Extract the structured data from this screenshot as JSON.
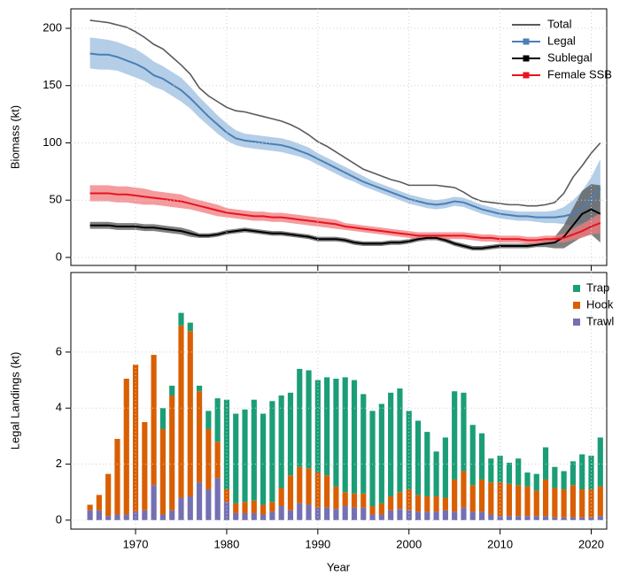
{
  "chart_data": [
    {
      "type": "line",
      "ylabel": "Biomass (kt)",
      "legend": "upper right",
      "grid": true,
      "xlim": [
        1962.9,
        2021.7
      ],
      "xticks": [
        1970,
        1980,
        1990,
        2000,
        2010,
        2020
      ],
      "ylim": [
        -7,
        217
      ],
      "yticks": [
        0,
        50,
        100,
        150,
        200
      ],
      "x": [
        1965,
        1966,
        1967,
        1968,
        1969,
        1970,
        1971,
        1972,
        1973,
        1974,
        1975,
        1976,
        1977,
        1978,
        1979,
        1980,
        1981,
        1982,
        1983,
        1984,
        1985,
        1986,
        1987,
        1988,
        1989,
        1990,
        1991,
        1992,
        1993,
        1994,
        1995,
        1996,
        1997,
        1998,
        1999,
        2000,
        2001,
        2002,
        2003,
        2004,
        2005,
        2006,
        2007,
        2008,
        2009,
        2010,
        2011,
        2012,
        2013,
        2014,
        2015,
        2016,
        2017,
        2018,
        2019,
        2020,
        2021
      ],
      "series": [
        {
          "name": "Total",
          "color": "#5a5a5a",
          "values": [
            207,
            206,
            205,
            203,
            201,
            197,
            192,
            186,
            182,
            175,
            168,
            160,
            148,
            141,
            136,
            131,
            128,
            127,
            125,
            123,
            121,
            119,
            116,
            112,
            107,
            101,
            97,
            92,
            87,
            82,
            77,
            74,
            71,
            68,
            66,
            63,
            63,
            63,
            63,
            62,
            61,
            57,
            52,
            49,
            48,
            47,
            46,
            46,
            45,
            45,
            46,
            48,
            56,
            70,
            80,
            91,
            100
          ]
        },
        {
          "name": "Legal",
          "color": "#4a7fb5",
          "band_color": "#9bbde0",
          "values": [
            178,
            177,
            177,
            175,
            172,
            169,
            165,
            159,
            156,
            151,
            146,
            139,
            131,
            123,
            116,
            109,
            104,
            102,
            101,
            100,
            99,
            98,
            96,
            93,
            90,
            86,
            82,
            78,
            74,
            70,
            66,
            63,
            60,
            57,
            54,
            51,
            49,
            47,
            46,
            47,
            49,
            48,
            45,
            42,
            40,
            38,
            37,
            36,
            36,
            35,
            35,
            35,
            36,
            38,
            43,
            51,
            60
          ],
          "lower": [
            165,
            164,
            164,
            163,
            160,
            157,
            154,
            149,
            146,
            141,
            136,
            130,
            122,
            115,
            108,
            102,
            98,
            96,
            95,
            94,
            93,
            92,
            90,
            88,
            85,
            81,
            77,
            73,
            69,
            66,
            62,
            59,
            56,
            53,
            50,
            47,
            45,
            43,
            42,
            43,
            45,
            44,
            41,
            38,
            36,
            34,
            33,
            32,
            32,
            31,
            30,
            30,
            29,
            28,
            30,
            33,
            38
          ],
          "upper": [
            192,
            191,
            190,
            188,
            185,
            182,
            177,
            171,
            167,
            162,
            157,
            149,
            140,
            132,
            124,
            117,
            111,
            108,
            107,
            106,
            105,
            104,
            102,
            99,
            96,
            91,
            87,
            83,
            79,
            75,
            71,
            67,
            64,
            61,
            58,
            55,
            53,
            51,
            50,
            51,
            53,
            52,
            49,
            46,
            44,
            42,
            41,
            40,
            40,
            40,
            40,
            41,
            44,
            50,
            58,
            70,
            86
          ]
        },
        {
          "name": "Sublegal",
          "color": "#000000",
          "band_color": "#555555",
          "values": [
            28,
            28,
            28,
            27,
            27,
            27,
            26,
            26,
            25,
            24,
            23,
            21,
            19,
            19,
            20,
            22,
            23,
            24,
            23,
            22,
            21,
            21,
            20,
            19,
            18,
            16,
            16,
            16,
            15,
            13,
            12,
            12,
            12,
            13,
            13,
            14,
            16,
            17,
            17,
            15,
            12,
            10,
            8,
            8,
            9,
            10,
            10,
            10,
            10,
            11,
            12,
            13,
            18,
            28,
            38,
            42,
            38
          ],
          "lower": [
            25,
            25,
            25,
            24,
            24,
            24,
            23,
            23,
            22,
            21,
            20,
            18,
            17,
            17,
            18,
            20,
            21,
            22,
            21,
            20,
            19,
            19,
            18,
            17,
            16,
            14,
            14,
            14,
            13,
            11,
            10,
            10,
            10,
            11,
            11,
            12,
            14,
            15,
            15,
            13,
            10,
            8,
            6,
            6,
            7,
            8,
            8,
            8,
            8,
            9,
            9,
            8,
            8,
            13,
            18,
            20,
            13
          ],
          "upper": [
            31,
            31,
            31,
            30,
            30,
            30,
            29,
            29,
            28,
            27,
            26,
            24,
            21,
            21,
            22,
            24,
            25,
            26,
            25,
            24,
            23,
            23,
            22,
            21,
            20,
            18,
            18,
            18,
            17,
            15,
            14,
            14,
            14,
            15,
            15,
            16,
            18,
            19,
            19,
            17,
            14,
            12,
            10,
            10,
            11,
            12,
            12,
            12,
            12,
            13,
            15,
            18,
            28,
            43,
            58,
            64,
            63
          ]
        },
        {
          "name": "Female SSB",
          "color": "#e8141e",
          "band_color": "#f07a7e",
          "values": [
            56,
            56,
            56,
            55,
            55,
            54,
            53,
            52,
            51,
            50,
            49,
            47,
            45,
            43,
            41,
            39,
            38,
            37,
            36,
            36,
            35,
            35,
            34,
            33,
            32,
            31,
            30,
            29,
            27,
            26,
            25,
            24,
            23,
            22,
            21,
            20,
            19,
            19,
            19,
            19,
            19,
            19,
            18,
            17,
            17,
            16,
            16,
            16,
            15,
            15,
            16,
            16,
            17,
            20,
            23,
            27,
            30
          ],
          "lower": [
            49,
            49,
            49,
            48,
            48,
            47,
            46,
            46,
            45,
            44,
            43,
            42,
            40,
            38,
            36,
            35,
            34,
            33,
            32,
            32,
            31,
            31,
            30,
            29,
            28,
            27,
            26,
            25,
            24,
            23,
            22,
            21,
            20,
            19,
            18,
            17,
            16,
            16,
            16,
            16,
            16,
            16,
            15,
            14,
            14,
            13,
            13,
            13,
            12,
            12,
            13,
            13,
            13,
            15,
            17,
            20,
            21
          ],
          "upper": [
            63,
            63,
            63,
            62,
            62,
            61,
            60,
            58,
            57,
            56,
            55,
            52,
            50,
            48,
            46,
            43,
            42,
            41,
            40,
            40,
            39,
            39,
            38,
            37,
            36,
            35,
            34,
            33,
            30,
            29,
            28,
            27,
            26,
            25,
            24,
            23,
            22,
            22,
            22,
            22,
            22,
            22,
            21,
            20,
            20,
            19,
            19,
            19,
            18,
            18,
            19,
            19,
            21,
            25,
            29,
            34,
            39
          ]
        }
      ]
    },
    {
      "type": "bar",
      "stacked": true,
      "ylabel": "Legal Landings (kt)",
      "xlabel": "Year",
      "legend": "upper right",
      "grid": true,
      "xlim": [
        1962.9,
        2021.7
      ],
      "xticks": [
        1970,
        1980,
        1990,
        2000,
        2010,
        2020
      ],
      "ylim": [
        -0.32,
        8.84
      ],
      "yticks": [
        0,
        2,
        4,
        6
      ],
      "x": [
        1965,
        1966,
        1967,
        1968,
        1969,
        1970,
        1971,
        1972,
        1973,
        1974,
        1975,
        1976,
        1977,
        1978,
        1979,
        1980,
        1981,
        1982,
        1983,
        1984,
        1985,
        1986,
        1987,
        1988,
        1989,
        1990,
        1991,
        1992,
        1993,
        1994,
        1995,
        1996,
        1997,
        1998,
        1999,
        2000,
        2001,
        2002,
        2003,
        2004,
        2005,
        2006,
        2007,
        2008,
        2009,
        2010,
        2011,
        2012,
        2013,
        2014,
        2015,
        2016,
        2017,
        2018,
        2019,
        2020,
        2021
      ],
      "series": [
        {
          "name": "Trawl",
          "color": "#7570b3",
          "values": [
            0.35,
            0.35,
            0.15,
            0.2,
            0.2,
            0.3,
            0.35,
            1.25,
            0.2,
            0.35,
            0.8,
            0.85,
            1.35,
            1.1,
            1.5,
            0.65,
            0.25,
            0.25,
            0.25,
            0.2,
            0.3,
            0.5,
            0.35,
            0.6,
            0.55,
            0.45,
            0.45,
            0.4,
            0.5,
            0.45,
            0.45,
            0.2,
            0.2,
            0.35,
            0.4,
            0.35,
            0.3,
            0.3,
            0.3,
            0.35,
            0.3,
            0.45,
            0.3,
            0.3,
            0.2,
            0.15,
            0.15,
            0.15,
            0.15,
            0.15,
            0.15,
            0.1,
            0.1,
            0.1,
            0.1,
            0.1,
            0.15
          ]
        },
        {
          "name": "Hook",
          "color": "#d95f02",
          "values": [
            0.2,
            0.55,
            1.5,
            2.7,
            4.85,
            5.25,
            3.15,
            4.65,
            3.05,
            4.1,
            6.15,
            5.9,
            3.25,
            2.15,
            1.3,
            0.45,
            0.35,
            0.4,
            0.45,
            0.35,
            0.35,
            0.65,
            1.25,
            1.3,
            1.3,
            1.25,
            1.15,
            0.8,
            0.5,
            0.5,
            0.5,
            0.3,
            0.4,
            0.5,
            0.6,
            0.75,
            0.6,
            0.55,
            0.55,
            0.45,
            1.15,
            1.3,
            0.95,
            1.15,
            1.15,
            1.2,
            1.15,
            1.1,
            1.05,
            0.9,
            1.3,
            1.05,
            1.0,
            1.15,
            1.0,
            1.0,
            1.05
          ]
        },
        {
          "name": "Trap",
          "color": "#1b9e77",
          "values": [
            0,
            0,
            0,
            0,
            0,
            0,
            0,
            0,
            0.75,
            0.35,
            0.45,
            0.3,
            0.2,
            0.65,
            1.55,
            3.2,
            3.2,
            3.3,
            3.6,
            3.25,
            3.6,
            3.3,
            2.95,
            3.5,
            3.5,
            3.3,
            3.5,
            3.85,
            4.1,
            4.05,
            3.55,
            3.4,
            3.55,
            3.7,
            3.7,
            2.8,
            2.65,
            2.3,
            1.6,
            2.15,
            3.15,
            2.8,
            2.15,
            1.65,
            0.85,
            0.95,
            0.75,
            0.95,
            0.5,
            0.6,
            1.15,
            0.75,
            0.65,
            0.85,
            1.25,
            1.2,
            1.75
          ]
        }
      ]
    }
  ]
}
